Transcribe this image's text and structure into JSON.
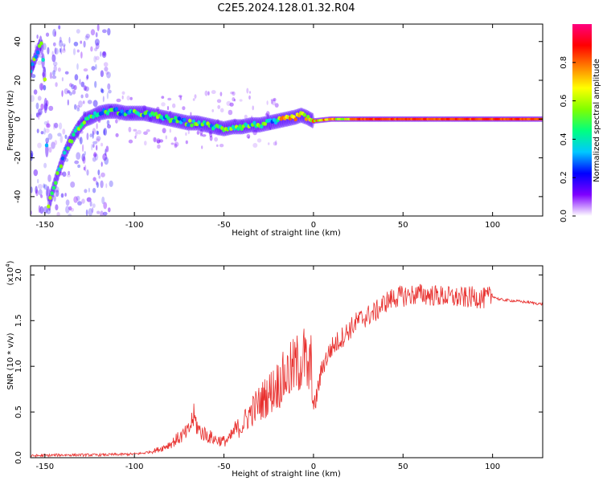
{
  "title": "C2E5.2024.128.01.32.R04",
  "colorbar": {
    "label": "Normalized spectral amplitude",
    "ticks": [
      "0.0",
      "0.2",
      "0.4",
      "0.6",
      "0.8"
    ],
    "tick_values": [
      0.0,
      0.2,
      0.4,
      0.6,
      0.8
    ],
    "range": [
      0,
      1
    ],
    "colormap": [
      "#ffffff",
      "#7f00ff",
      "#0000ff",
      "#00c8ff",
      "#00ff80",
      "#80ff00",
      "#ffff00",
      "#ff8000",
      "#ff0000",
      "#ff007f"
    ]
  },
  "chart_data": [
    {
      "type": "heatmap",
      "xlabel": "Height of straight line (km)",
      "ylabel": "Frequency (Hz)",
      "xlim": [
        -158,
        128
      ],
      "ylim": [
        -50,
        49
      ],
      "xticks": [
        -150,
        -100,
        -50,
        0,
        50,
        100
      ],
      "xtick_labels": [
        "-150",
        "-100",
        "-50",
        "0",
        "50",
        "100"
      ],
      "yticks": [
        -40,
        -20,
        0,
        20,
        40
      ],
      "ytick_labels": [
        "-40",
        "-20",
        "0",
        "20",
        "40"
      ],
      "ridge": {
        "x": [
          -158,
          -152,
          -150,
          -148,
          -145,
          -142,
          -139,
          -136,
          -133,
          -130,
          -127,
          -124,
          -120,
          -115,
          -110,
          -105,
          -100,
          -95,
          -90,
          -85,
          -80,
          -75,
          -70,
          -65,
          -60,
          -55,
          -50,
          -45,
          -40,
          -35,
          -30,
          -25,
          -20,
          -15,
          -10,
          -7,
          -4,
          0,
          10,
          30,
          60,
          90,
          128
        ],
        "y": [
          25,
          40,
          20,
          -45,
          -35,
          -26,
          -18,
          -12,
          -7,
          -3,
          0,
          1,
          3,
          4,
          4,
          3,
          3,
          3,
          2,
          1,
          0,
          -1,
          -2,
          -2,
          -3,
          -4,
          -5,
          -4,
          -4,
          -3,
          -3,
          -2,
          -1,
          0,
          1,
          2,
          1,
          -1,
          0,
          0,
          0,
          0,
          0
        ]
      }
    },
    {
      "type": "line",
      "xlabel": "Height of straight line (km)",
      "ylabel": "SNR (10 * v/v)",
      "yscale_label": "(x10",
      "yscale_exponent": "4",
      "yscale_suffix": ")",
      "xlim": [
        -158,
        128
      ],
      "ylim": [
        0,
        2.1
      ],
      "xticks": [
        -150,
        -100,
        -50,
        0,
        50,
        100
      ],
      "xtick_labels": [
        "-150",
        "-100",
        "-50",
        "0",
        "50",
        "100"
      ],
      "yticks": [
        0.0,
        0.5,
        1.0,
        1.5,
        2.0
      ],
      "ytick_labels": [
        "0.0",
        "0.5",
        "1.0",
        "1.5",
        "2.0"
      ],
      "color": "#e8302e",
      "series": [
        {
          "x": [
            -158,
            -140,
            -120,
            -100,
            -95,
            -90,
            -85,
            -80,
            -75,
            -70,
            -67,
            -64,
            -60,
            -55,
            -50,
            -47,
            -44,
            -40,
            -35,
            -30,
            -25,
            -20,
            -15,
            -10,
            -5,
            -3,
            -1,
            0,
            5,
            10,
            15,
            20,
            25,
            30,
            35,
            40,
            45,
            50,
            55,
            60,
            65,
            70,
            75,
            80,
            85,
            90,
            95,
            100,
            104,
            110,
            120,
            128
          ],
          "y": [
            0.02,
            0.03,
            0.03,
            0.04,
            0.05,
            0.07,
            0.1,
            0.15,
            0.22,
            0.28,
            0.45,
            0.3,
            0.25,
            0.2,
            0.18,
            0.2,
            0.3,
            0.35,
            0.5,
            0.6,
            0.7,
            0.8,
            0.9,
            1.0,
            1.1,
            0.9,
            1.05,
            0.5,
            1.0,
            1.2,
            1.3,
            1.4,
            1.5,
            1.55,
            1.6,
            1.7,
            1.75,
            1.77,
            1.78,
            1.79,
            1.78,
            1.77,
            1.76,
            1.75,
            1.75,
            1.76,
            1.74,
            1.77,
            1.73,
            1.72,
            1.7,
            1.68
          ]
        }
      ]
    }
  ]
}
